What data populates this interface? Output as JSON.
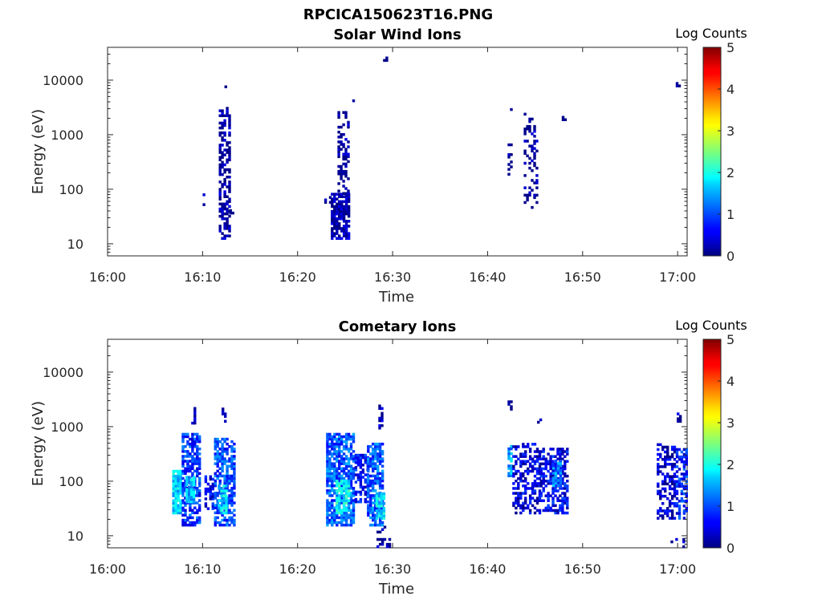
{
  "figure": {
    "title": "RPCICA150623T16.PNG"
  },
  "chart_data": [
    {
      "type": "heatmap",
      "title": "Solar Wind Ions",
      "xlabel": "Time",
      "ylabel": "Energy (eV)",
      "x_ticks": [
        "16:00",
        "16:10",
        "16:20",
        "16:30",
        "16:40",
        "16:50",
        "17:00"
      ],
      "y_ticks": [
        "10",
        "100",
        "1000",
        "10000"
      ],
      "y_scale": "log",
      "ylim": [
        6,
        40000
      ],
      "xlim_minutes": [
        0,
        61
      ],
      "colorbar": {
        "label": "Log Counts",
        "ticks": [
          "0",
          "1",
          "2",
          "3",
          "4",
          "5"
        ],
        "range": [
          0,
          5
        ],
        "colormap": "jet"
      },
      "clusters": [
        {
          "t0": 10.0,
          "t1": 10.2,
          "emin": 45,
          "emax": 80,
          "level": 0.1,
          "density": 0.6
        },
        {
          "t0": 11.7,
          "t1": 12.8,
          "emin": 12,
          "emax": 3000,
          "level": 0.15,
          "density": 0.55
        },
        {
          "t0": 12.3,
          "t1": 12.5,
          "emin": 6500,
          "emax": 7500,
          "level": 0.1,
          "density": 0.5
        },
        {
          "t0": 12.8,
          "t1": 13.3,
          "emin": 35,
          "emax": 45,
          "level": 0.1,
          "density": 0.5
        },
        {
          "t0": 22.8,
          "t1": 23.4,
          "emin": 55,
          "emax": 70,
          "level": 0.1,
          "density": 0.5
        },
        {
          "t0": 23.5,
          "t1": 25.5,
          "emin": 12,
          "emax": 80,
          "level": 0.2,
          "density": 0.8
        },
        {
          "t0": 24.2,
          "t1": 25.3,
          "emin": 80,
          "emax": 2500,
          "level": 0.1,
          "density": 0.35
        },
        {
          "t0": 25.5,
          "t1": 25.8,
          "emin": 4000,
          "emax": 4800,
          "level": 0.1,
          "density": 0.5
        },
        {
          "t0": 29.0,
          "t1": 29.3,
          "emin": 22000,
          "emax": 25000,
          "level": 0.1,
          "density": 0.7
        },
        {
          "t0": 42.1,
          "t1": 42.4,
          "emin": 180,
          "emax": 650,
          "level": 0.1,
          "density": 0.5
        },
        {
          "t0": 42.1,
          "t1": 42.4,
          "emin": 2500,
          "emax": 3000,
          "level": 0.1,
          "density": 0.5
        },
        {
          "t0": 43.8,
          "t1": 45.3,
          "emin": 40,
          "emax": 2500,
          "level": 0.1,
          "density": 0.25
        },
        {
          "t0": 47.8,
          "t1": 48.1,
          "emin": 1800,
          "emax": 2100,
          "level": 0.1,
          "density": 0.6
        },
        {
          "t0": 59.8,
          "t1": 60.2,
          "emin": 7500,
          "emax": 8500,
          "level": 0.1,
          "density": 0.6
        }
      ]
    },
    {
      "type": "heatmap",
      "title": "Cometary Ions",
      "xlabel": "Time",
      "ylabel": "Energy (eV)",
      "x_ticks": [
        "16:00",
        "16:10",
        "16:20",
        "16:30",
        "16:40",
        "16:50",
        "17:00"
      ],
      "y_ticks": [
        "10",
        "100",
        "1000",
        "10000"
      ],
      "y_scale": "log",
      "ylim": [
        6,
        40000
      ],
      "xlim_minutes": [
        0,
        61
      ],
      "colorbar": {
        "label": "Log Counts",
        "ticks": [
          "0",
          "1",
          "2",
          "3",
          "4",
          "5"
        ],
        "range": [
          0,
          5
        ],
        "colormap": "jet"
      },
      "clusters": [
        {
          "t0": 6.8,
          "t1": 7.8,
          "emin": 25,
          "emax": 150,
          "level": 1.7,
          "density": 0.9
        },
        {
          "t0": 7.8,
          "t1": 9.8,
          "emin": 15,
          "emax": 700,
          "level": 0.9,
          "density": 0.65
        },
        {
          "t0": 8.2,
          "t1": 9.0,
          "emin": 40,
          "emax": 120,
          "level": 1.6,
          "density": 0.8
        },
        {
          "t0": 8.8,
          "t1": 9.2,
          "emin": 1000,
          "emax": 2500,
          "level": 0.3,
          "density": 0.4
        },
        {
          "t0": 10.2,
          "t1": 11.2,
          "emin": 30,
          "emax": 120,
          "level": 0.6,
          "density": 0.6
        },
        {
          "t0": 11.2,
          "t1": 13.3,
          "emin": 15,
          "emax": 600,
          "level": 1.0,
          "density": 0.7
        },
        {
          "t0": 11.6,
          "t1": 12.6,
          "emin": 25,
          "emax": 80,
          "level": 1.7,
          "density": 0.8
        },
        {
          "t0": 12.0,
          "t1": 12.3,
          "emin": 1200,
          "emax": 2200,
          "level": 0.2,
          "density": 0.6
        },
        {
          "t0": 23.0,
          "t1": 26.0,
          "emin": 15,
          "emax": 700,
          "level": 1.1,
          "density": 0.75
        },
        {
          "t0": 24.0,
          "t1": 25.5,
          "emin": 25,
          "emax": 100,
          "level": 1.9,
          "density": 0.8
        },
        {
          "t0": 26.0,
          "t1": 27.3,
          "emin": 40,
          "emax": 300,
          "level": 0.7,
          "density": 0.55
        },
        {
          "t0": 27.3,
          "t1": 29.0,
          "emin": 15,
          "emax": 500,
          "level": 1.1,
          "density": 0.7
        },
        {
          "t0": 28.2,
          "t1": 29.0,
          "emin": 20,
          "emax": 60,
          "level": 1.8,
          "density": 0.8
        },
        {
          "t0": 28.5,
          "t1": 28.9,
          "emin": 900,
          "emax": 2500,
          "level": 0.2,
          "density": 0.5
        },
        {
          "t0": 28.3,
          "t1": 29.8,
          "emin": 6,
          "emax": 14,
          "level": 0.2,
          "density": 0.4
        },
        {
          "t0": 42.1,
          "t1": 42.6,
          "emin": 120,
          "emax": 450,
          "level": 1.4,
          "density": 0.8
        },
        {
          "t0": 42.1,
          "t1": 42.4,
          "emin": 2000,
          "emax": 3000,
          "level": 0.2,
          "density": 0.6
        },
        {
          "t0": 42.6,
          "t1": 45.5,
          "emin": 25,
          "emax": 500,
          "level": 0.5,
          "density": 0.5
        },
        {
          "t0": 45.5,
          "t1": 48.3,
          "emin": 25,
          "emax": 400,
          "level": 0.6,
          "density": 0.55
        },
        {
          "t0": 46.8,
          "t1": 47.8,
          "emin": 80,
          "emax": 250,
          "level": 1.3,
          "density": 0.6
        },
        {
          "t0": 45.2,
          "t1": 45.5,
          "emin": 1150,
          "emax": 1350,
          "level": 0.1,
          "density": 0.6
        },
        {
          "t0": 57.8,
          "t1": 59.8,
          "emin": 20,
          "emax": 450,
          "level": 0.4,
          "density": 0.5
        },
        {
          "t0": 59.8,
          "t1": 60.9,
          "emin": 20,
          "emax": 400,
          "level": 0.8,
          "density": 0.55
        },
        {
          "t0": 59.9,
          "t1": 60.2,
          "emin": 1200,
          "emax": 1800,
          "level": 0.2,
          "density": 0.5
        },
        {
          "t0": 59.0,
          "t1": 60.8,
          "emin": 6,
          "emax": 9,
          "level": 0.2,
          "density": 0.3
        }
      ]
    }
  ]
}
